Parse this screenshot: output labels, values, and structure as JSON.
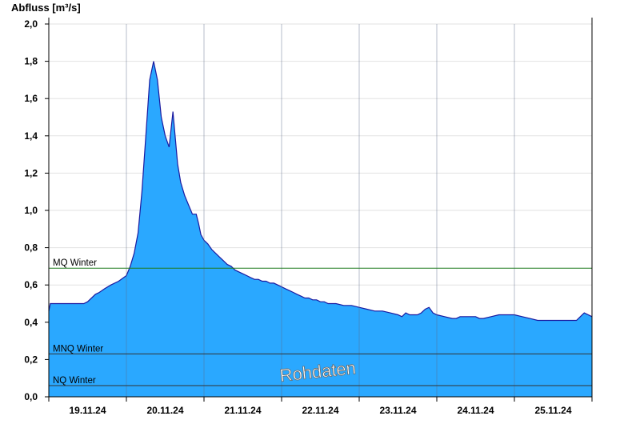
{
  "chart_data": {
    "type": "area",
    "ylabel": "Abfluss [m³/s]",
    "ylim": [
      0,
      2.0
    ],
    "y_ticks": [
      "0,0",
      "0,2",
      "0,4",
      "0,6",
      "0,8",
      "1,0",
      "1,2",
      "1,4",
      "1,6",
      "1,8",
      "2,0"
    ],
    "x_day_labels": [
      "19.11.24",
      "20.11.24",
      "21.11.24",
      "22.11.24",
      "23.11.24",
      "24.11.24",
      "25.11.24"
    ],
    "x_domain_days": [
      0,
      7
    ],
    "grid": true,
    "fill_color": "#2aa8ff",
    "line_color": "#1a1aa0",
    "reference_lines": [
      {
        "label": "MQ Winter",
        "value": 0.69,
        "color": "#1e7a1e"
      },
      {
        "label": "MNQ Winter",
        "value": 0.23,
        "color": "#333333"
      },
      {
        "label": "NQ Winter",
        "value": 0.06,
        "color": "#333333"
      }
    ],
    "watermark": "Rohdaten",
    "series": [
      {
        "x": [
          0.0,
          0.02,
          0.45,
          0.5,
          0.6,
          0.65,
          0.72,
          0.8,
          0.9,
          1.0,
          1.05,
          1.1,
          1.15,
          1.2,
          1.25,
          1.3,
          1.35,
          1.4,
          1.45,
          1.5,
          1.55,
          1.6,
          1.66,
          1.7,
          1.75,
          1.8,
          1.85,
          1.9,
          1.93,
          1.96,
          2.0,
          2.05,
          2.1,
          2.15,
          2.2,
          2.25,
          2.3,
          2.35,
          2.4,
          2.45,
          2.5,
          2.55,
          2.6,
          2.65,
          2.7,
          2.75,
          2.8,
          2.85,
          2.9,
          2.95,
          3.0,
          3.05,
          3.1,
          3.15,
          3.2,
          3.25,
          3.3,
          3.35,
          3.4,
          3.45,
          3.5,
          3.55,
          3.6,
          3.7,
          3.8,
          3.9,
          4.0,
          4.1,
          4.2,
          4.3,
          4.4,
          4.5,
          4.55,
          4.6,
          4.65,
          4.7,
          4.75,
          4.8,
          4.85,
          4.9,
          4.95,
          5.0,
          5.1,
          5.2,
          5.25,
          5.3,
          5.4,
          5.5,
          5.55,
          5.6,
          5.7,
          5.8,
          5.9,
          6.0,
          6.1,
          6.2,
          6.3,
          6.4,
          6.5,
          6.6,
          6.7,
          6.8,
          6.85,
          6.9,
          7.0
        ],
        "y": [
          0.46,
          0.5,
          0.5,
          0.51,
          0.55,
          0.56,
          0.58,
          0.6,
          0.62,
          0.65,
          0.7,
          0.77,
          0.88,
          1.1,
          1.4,
          1.7,
          1.8,
          1.7,
          1.5,
          1.4,
          1.34,
          1.53,
          1.25,
          1.15,
          1.08,
          1.03,
          0.98,
          0.98,
          0.93,
          0.87,
          0.84,
          0.82,
          0.79,
          0.77,
          0.75,
          0.73,
          0.71,
          0.7,
          0.68,
          0.67,
          0.66,
          0.65,
          0.64,
          0.63,
          0.63,
          0.62,
          0.62,
          0.61,
          0.61,
          0.6,
          0.59,
          0.58,
          0.57,
          0.56,
          0.55,
          0.54,
          0.53,
          0.53,
          0.52,
          0.52,
          0.51,
          0.51,
          0.5,
          0.5,
          0.49,
          0.49,
          0.48,
          0.47,
          0.46,
          0.46,
          0.45,
          0.44,
          0.43,
          0.45,
          0.44,
          0.44,
          0.44,
          0.45,
          0.47,
          0.48,
          0.45,
          0.44,
          0.43,
          0.42,
          0.42,
          0.43,
          0.43,
          0.43,
          0.42,
          0.42,
          0.43,
          0.44,
          0.44,
          0.44,
          0.43,
          0.42,
          0.41,
          0.41,
          0.41,
          0.41,
          0.41,
          0.41,
          0.43,
          0.45,
          0.43
        ]
      }
    ]
  }
}
